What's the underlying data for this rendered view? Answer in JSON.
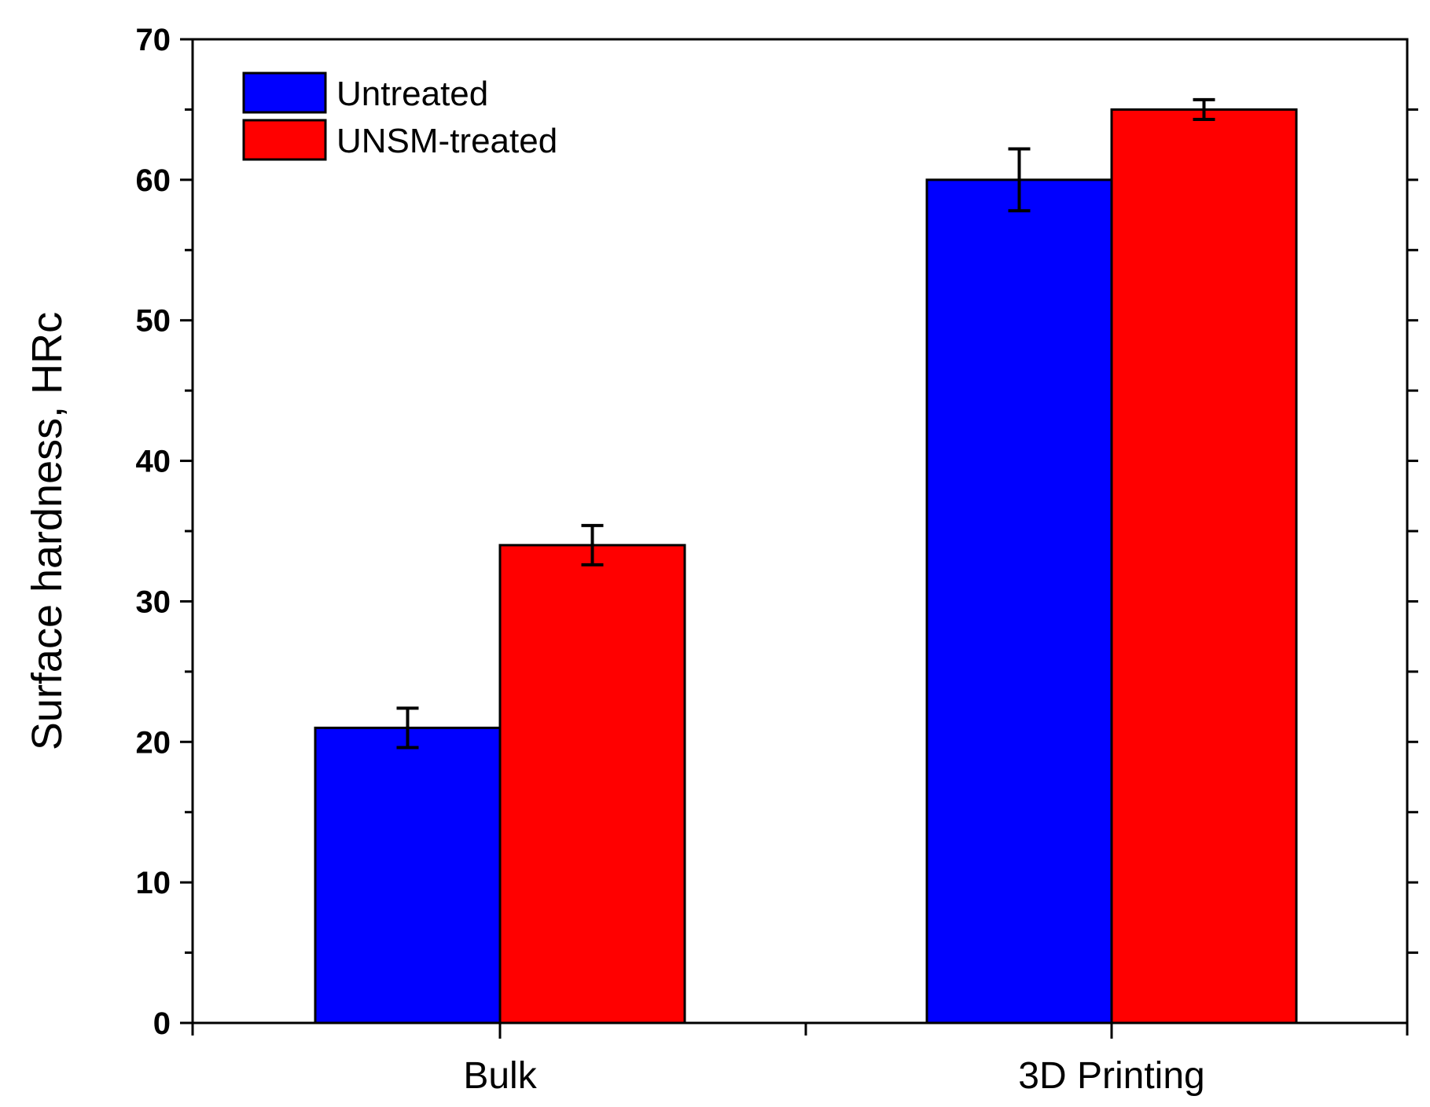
{
  "chart_data": {
    "type": "bar",
    "categories": [
      "Bulk",
      "3D Printing"
    ],
    "series": [
      {
        "name": "Untreated",
        "color": "#0000ff",
        "values": [
          21,
          60
        ],
        "errors": [
          1.4,
          2.2
        ]
      },
      {
        "name": "UNSM-treated",
        "color": "#ff0000",
        "values": [
          34,
          65
        ],
        "errors": [
          1.4,
          0.7
        ]
      }
    ],
    "title": "",
    "xlabel": "",
    "ylabel": "Surface hardness, HRc",
    "ylim": [
      0,
      70
    ],
    "yticks": [
      "0",
      "10",
      "20",
      "30",
      "40",
      "50",
      "60",
      "70"
    ],
    "grid": false,
    "legend_position": "top-left"
  }
}
